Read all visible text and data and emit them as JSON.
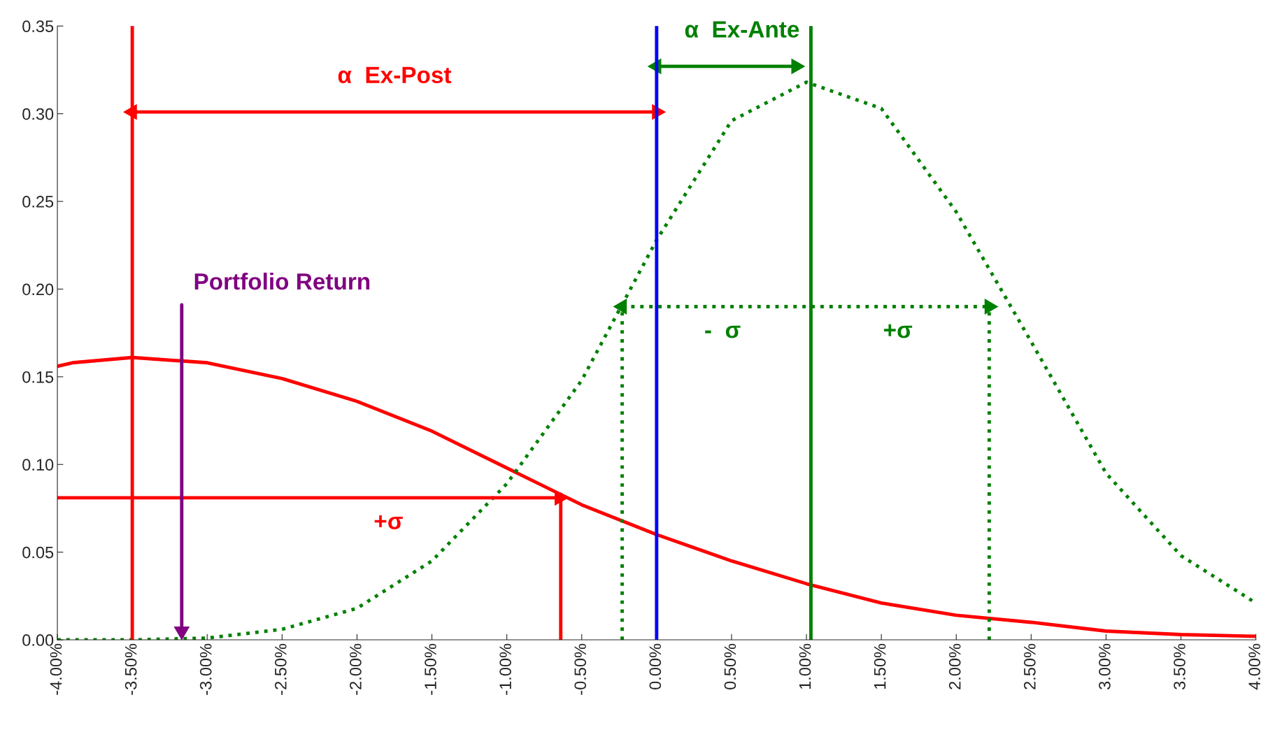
{
  "chart_data": {
    "type": "line",
    "xlim": [
      -4,
      4
    ],
    "xticks": [
      {
        "value": -4,
        "label": "-4.00%"
      },
      {
        "value": -3.5,
        "label": "-3.50%"
      },
      {
        "value": -3,
        "label": "-3.00%"
      },
      {
        "value": -2.5,
        "label": "-2.50%"
      },
      {
        "value": -2,
        "label": "-2.00%"
      },
      {
        "value": -1.5,
        "label": "-1.50%"
      },
      {
        "value": -1,
        "label": "-1.00%"
      },
      {
        "value": -0.5,
        "label": "-0.50%"
      },
      {
        "value": 0,
        "label": "0.00%"
      },
      {
        "value": 0.5,
        "label": "0.50%"
      },
      {
        "value": 1,
        "label": "1.00%"
      },
      {
        "value": 1.5,
        "label": "1.50%"
      },
      {
        "value": 2,
        "label": "2.00%"
      },
      {
        "value": 2.5,
        "label": "2.50%"
      },
      {
        "value": 3,
        "label": "3.00%"
      },
      {
        "value": 3.5,
        "label": "3.50%"
      },
      {
        "value": 4,
        "label": "4.00%"
      }
    ],
    "ylim": [
      0,
      0.35
    ],
    "yticks": [
      {
        "value": 0,
        "label": "0.00"
      },
      {
        "value": 0.05,
        "label": "0.05"
      },
      {
        "value": 0.1,
        "label": "0.10"
      },
      {
        "value": 0.15,
        "label": "0.15"
      },
      {
        "value": 0.2,
        "label": "0.20"
      },
      {
        "value": 0.25,
        "label": "0.25"
      },
      {
        "value": 0.3,
        "label": "0.30"
      },
      {
        "value": 0.35,
        "label": "0.35"
      }
    ],
    "series": [
      {
        "color": "#ff0000",
        "line_style": "solid",
        "marker": "none",
        "x": [
          -4,
          -3.9,
          -3.5,
          -3,
          -2.5,
          -2,
          -1.5,
          -1,
          -0.5,
          0,
          0.5,
          1,
          1.5,
          2,
          2.5,
          3,
          3.5,
          4
        ],
        "values": [
          0.156,
          0.158,
          0.161,
          0.158,
          0.149,
          0.136,
          0.119,
          0.098,
          0.077,
          0.06,
          0.045,
          0.032,
          0.021,
          0.014,
          0.01,
          0.005,
          0.003,
          0.002
        ]
      },
      {
        "color": "#008000",
        "line_style": "dotted",
        "marker": "none",
        "x": [
          -4,
          -3.5,
          -3,
          -2.5,
          -2,
          -1.5,
          -1,
          -0.5,
          0,
          0.5,
          1,
          1.5,
          2,
          2.5,
          3,
          3.5,
          4
        ],
        "values": [
          0,
          0,
          0.001,
          0.006,
          0.018,
          0.045,
          0.089,
          0.148,
          0.228,
          0.296,
          0.318,
          0.303,
          0.244,
          0.17,
          0.095,
          0.048,
          0.021
        ]
      },
      {
        "color": "#ff0000",
        "line_style": "solid",
        "marker": "triangle",
        "x": [
          -3.5,
          -1.75,
          0
        ],
        "values": [
          0.301,
          0.301,
          0.301
        ]
      },
      {
        "color": "#008000",
        "line_style": "solid",
        "marker": "triangle",
        "x": [
          0,
          0.57,
          0.93
        ],
        "values": [
          0.327,
          0.327,
          0.327
        ]
      },
      {
        "color": "#008000",
        "line_style": "dotted",
        "marker": "triangle",
        "x": [
          -0.23,
          1.0,
          2.22
        ],
        "values": [
          0.19,
          0.19,
          0.19
        ]
      },
      {
        "color": "#008000",
        "line_style": "dotted",
        "marker": "none",
        "x": [
          -0.23,
          -0.23
        ],
        "values": [
          0,
          0.19
        ]
      },
      {
        "color": "#008000",
        "line_style": "dotted",
        "marker": "none",
        "x": [
          2.22,
          2.22
        ],
        "values": [
          0,
          0.19
        ]
      },
      {
        "color": "#ff0000",
        "line_style": "solid",
        "marker": "triangle",
        "x": [
          -4,
          -0.65
        ],
        "values": [
          0.081,
          0.081
        ]
      },
      {
        "color": "#ff0000",
        "line_style": "solid",
        "marker": "none",
        "x": [
          -0.64,
          -0.64
        ],
        "values": [
          0,
          0.083
        ]
      },
      {
        "color": "#800080",
        "line_style": "solid",
        "marker": "triangle",
        "x": [
          -3.17,
          -3.17
        ],
        "values": [
          0.191,
          0.005
        ]
      }
    ],
    "ref_lines": [
      {
        "axis": "x",
        "value": -3.5,
        "color": "#ff0000",
        "line_style": "solid"
      },
      {
        "axis": "x",
        "value": 0,
        "color": "#0000ff",
        "line_style": "solid"
      },
      {
        "axis": "x",
        "value": 1.03,
        "color": "#008000",
        "line_style": "solid"
      }
    ],
    "annotations": [
      {
        "text": "α  Ex-Post",
        "x": -1.75,
        "y": 0.301
      },
      {
        "text": "α  Ex-Ante",
        "x": 0.57,
        "y": 0.327
      },
      {
        "text": "Portfolio Return",
        "x": -3.17,
        "y": 0.191
      },
      {
        "text": "-  σ",
        "x": 0.44,
        "y": 0.19
      },
      {
        "text": "+σ",
        "x": 1.61,
        "y": 0.19
      },
      {
        "text": "+σ",
        "x": -1.79,
        "y": 0.081
      }
    ]
  }
}
